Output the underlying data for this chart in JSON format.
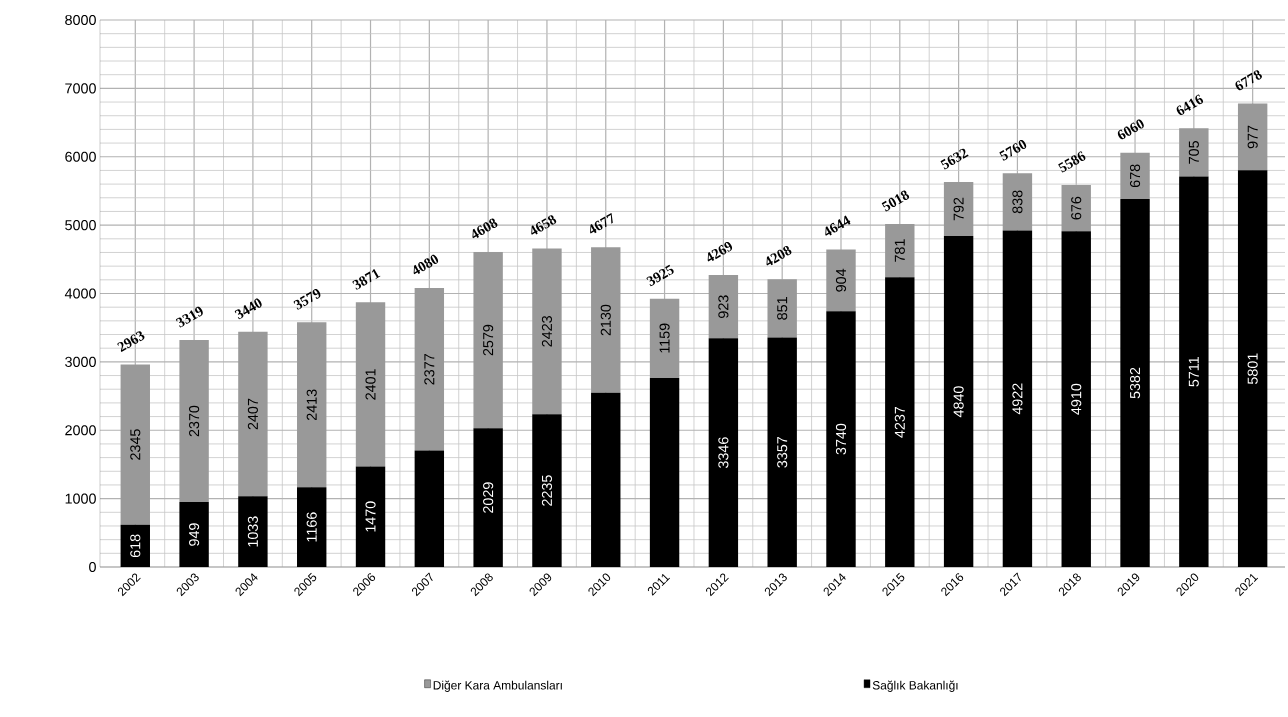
{
  "chart_data": {
    "type": "bar",
    "stacked": true,
    "categories": [
      "2002",
      "2003",
      "2004",
      "2005",
      "2006",
      "2007",
      "2008",
      "2009",
      "2010",
      "2011",
      "2012",
      "2013",
      "2014",
      "2015",
      "2016",
      "2017",
      "2018",
      "2019",
      "2020",
      "2021"
    ],
    "series": [
      {
        "name": "Sağlık Bakanlığı",
        "color": "#000000",
        "values": [
          618,
          949,
          1033,
          1166,
          1470,
          1703,
          2029,
          2235,
          2547,
          2766,
          3346,
          3357,
          3740,
          4237,
          4840,
          4922,
          4910,
          5382,
          5711,
          5801
        ],
        "value_labels": [
          "618",
          "949",
          "1033",
          "1166",
          "1470",
          null,
          "2029",
          "2235",
          null,
          null,
          "3346",
          "3357",
          "3740",
          "4237",
          "4840",
          "4922",
          "4910",
          "5382",
          "5711",
          "5801"
        ]
      },
      {
        "name": "Diğer Kara Ambulansları",
        "color": "#999999",
        "values": [
          2345,
          2370,
          2407,
          2413,
          2401,
          2377,
          2579,
          2423,
          2130,
          1159,
          923,
          851,
          904,
          781,
          792,
          838,
          676,
          678,
          705,
          977
        ],
        "value_labels": [
          "2345",
          "2370",
          "2407",
          "2413",
          "2401",
          "2377",
          "2579",
          "2423",
          "2130",
          "1159",
          "923",
          "851",
          "904",
          "781",
          "792",
          "838",
          "676",
          "678",
          "705",
          "977"
        ]
      }
    ],
    "totals": [
      "2963",
      "3319",
      "3440",
      "3579",
      "3871",
      "4080",
      "4608",
      "4658",
      "4677",
      "3925",
      "4269",
      "4208",
      "4644",
      "5018",
      "5632",
      "5760",
      "5586",
      "6060",
      "6416",
      "6778"
    ],
    "ylim": [
      0,
      8000
    ],
    "yticks": [
      0,
      1000,
      2000,
      3000,
      4000,
      5000,
      6000,
      7000,
      8000
    ],
    "grid": true,
    "legend": "bottom"
  }
}
